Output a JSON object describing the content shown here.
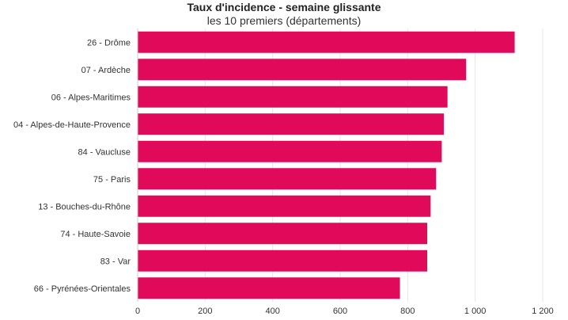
{
  "chart_data": {
    "type": "bar",
    "orientation": "horizontal",
    "title": "Taux d'incidence - semaine glissante",
    "subtitle": "les 10 premiers (départements)",
    "categories": [
      "26 - Drôme",
      "07 - Ardèche",
      "06 - Alpes-Maritimes",
      "04 - Alpes-de-Haute-Provence",
      "84 - Vaucluse",
      "75 - Paris",
      "13 - Bouches-du-Rhône",
      "74 - Haute-Savoie",
      "83 - Var",
      "66 - Pyrénées-Orientales"
    ],
    "values": [
      1117,
      973,
      918,
      907,
      901,
      884,
      868,
      858,
      858,
      777
    ],
    "xlim": [
      0,
      1200
    ],
    "x_ticks": [
      0,
      200,
      400,
      600,
      800,
      1000,
      1200
    ],
    "x_tick_labels": [
      "0",
      "200",
      "400",
      "600",
      "800",
      "1 000",
      "1 200"
    ],
    "bar_color": "#e0095a",
    "grid": true
  }
}
